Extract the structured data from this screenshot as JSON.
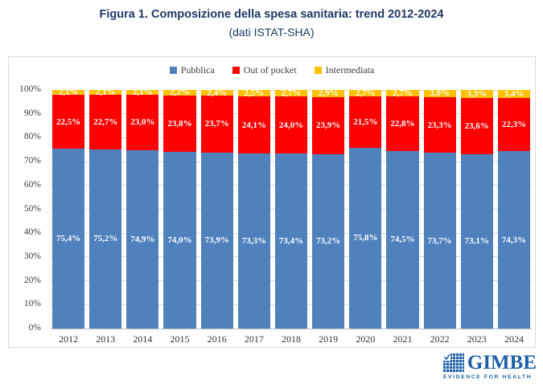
{
  "title": "Figura 1. Composizione della spesa sanitaria: trend 2012-2024",
  "subtitle": "(dati ISTAT-SHA)",
  "colors": {
    "title": "#1F3864",
    "axis_text": "#404040",
    "grid": "#D9D9D9",
    "baseline": "#BFBFBF",
    "panel_border": "#D9D9D9",
    "data_label": "#FFFFFF"
  },
  "chart_data": {
    "type": "bar",
    "stacked": true,
    "title": "Figura 1. Composizione della spesa sanitaria: trend 2012-2024",
    "subtitle": "(dati ISTAT-SHA)",
    "categories": [
      "2012",
      "2013",
      "2014",
      "2015",
      "2016",
      "2017",
      "2018",
      "2019",
      "2020",
      "2021",
      "2022",
      "2023",
      "2024"
    ],
    "series": [
      {
        "name": "Pubblica",
        "color": "#4F81BD",
        "values": [
          75.4,
          75.2,
          74.9,
          74.0,
          73.9,
          73.3,
          73.4,
          73.2,
          75.8,
          74.5,
          73.7,
          73.1,
          74.3
        ],
        "labels": [
          "75,4%",
          "75,2%",
          "74,9%",
          "74,0%",
          "73,9%",
          "73,3%",
          "73,4%",
          "73,2%",
          "75,8%",
          "74,5%",
          "73,7%",
          "73,1%",
          "74,3%"
        ]
      },
      {
        "name": "Out of pocket",
        "color": "#FF0000",
        "values": [
          22.5,
          22.7,
          23.0,
          23.8,
          23.7,
          24.1,
          24.0,
          23.9,
          21.5,
          22.8,
          23.3,
          23.6,
          22.3
        ],
        "labels": [
          "22,5%",
          "22,7%",
          "23,0%",
          "23,8%",
          "23,7%",
          "24,1%",
          "24,0%",
          "23,9%",
          "21,5%",
          "22,8%",
          "23,3%",
          "23,6%",
          "22,3%"
        ]
      },
      {
        "name": "Intermediata",
        "color": "#FFC000",
        "values": [
          2.1,
          2.1,
          2.1,
          2.2,
          2.4,
          2.5,
          2.7,
          2.9,
          2.7,
          2.7,
          3.0,
          3.3,
          3.4
        ],
        "labels": [
          "2,1%",
          "2,1%",
          "2,1%",
          "2,2%",
          "2,4%",
          "2,5%",
          "2,7%",
          "2,9%",
          "2,7%",
          "2,7%",
          "3,0%",
          "3,3%",
          "3,4%"
        ]
      }
    ],
    "xlabel": "",
    "ylabel": "",
    "ylim": [
      0,
      100
    ],
    "yticks": [
      "0%",
      "10%",
      "20%",
      "30%",
      "40%",
      "50%",
      "60%",
      "70%",
      "80%",
      "90%",
      "100%"
    ],
    "grid": true,
    "legend_position": "top"
  },
  "logo": {
    "name": "GIMBE",
    "tagline": "EVIDENCE FOR HEALTH",
    "color": "#1E5FA8"
  }
}
